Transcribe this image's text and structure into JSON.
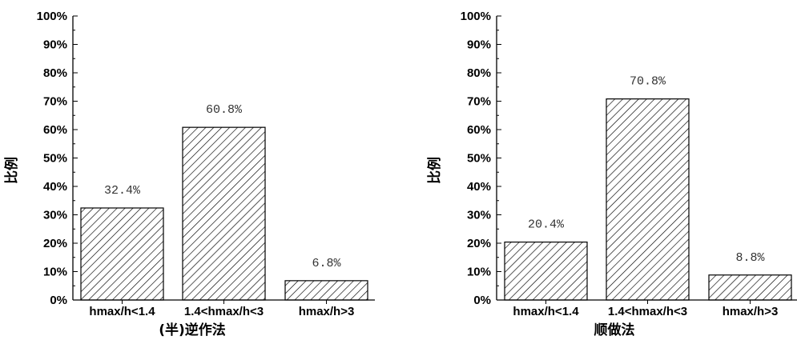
{
  "chart_data": [
    {
      "type": "bar",
      "categories": [
        "hmax/h<1.4",
        "1.4<hmax/h<3",
        "hmax/h>3"
      ],
      "values": [
        32.4,
        60.8,
        6.8
      ],
      "data_labels": [
        "32.4%",
        "60.8%",
        "6.8%"
      ],
      "ylabel": "比例",
      "xlabel": "(半)逆作法",
      "ylim": [
        0,
        100
      ],
      "yticks": [
        "0%",
        "10%",
        "20%",
        "30%",
        "40%",
        "50%",
        "60%",
        "70%",
        "80%",
        "90%",
        "100%"
      ],
      "bar_fill": "hatched",
      "grid": false
    },
    {
      "type": "bar",
      "categories": [
        "hmax/h<1.4",
        "1.4<hmax/h<3",
        "hmax/h>3"
      ],
      "values": [
        20.4,
        70.8,
        8.8
      ],
      "data_labels": [
        "20.4%",
        "70.8%",
        "8.8%"
      ],
      "ylabel": "比例",
      "xlabel": "顺做法",
      "ylim": [
        0,
        100
      ],
      "yticks": [
        "0%",
        "10%",
        "20%",
        "30%",
        "40%",
        "50%",
        "60%",
        "70%",
        "80%",
        "90%",
        "100%"
      ],
      "bar_fill": "hatched",
      "grid": false
    }
  ],
  "colors": {
    "bar_stroke": "#000000",
    "hatch": "#000000",
    "data_label": "#333333"
  }
}
